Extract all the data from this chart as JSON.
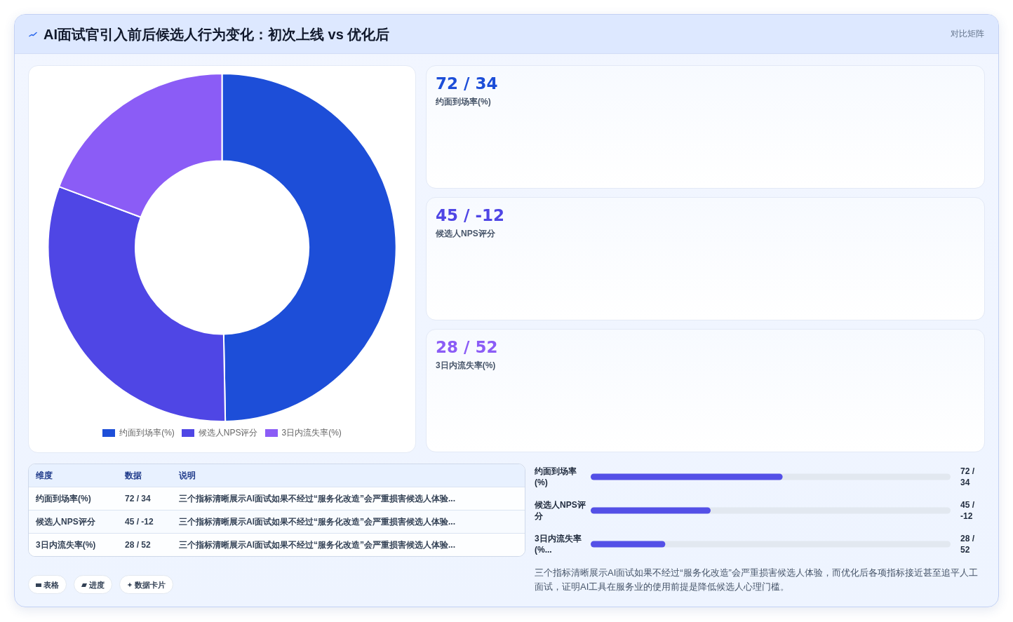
{
  "chart_data": [
    {
      "type": "donut",
      "title": "AI面试官引入前后候选人行为变化：初次上线 vs 优化后",
      "categories": [
        "约面到场率(%)",
        "候选人NPS评分",
        "3日内流失率(%)"
      ],
      "values": [
        49.7,
        31,
        19.3
      ],
      "colors": [
        "#1d4ed8",
        "#4f46e5",
        "#8b5cf6"
      ],
      "legend": "bottom"
    },
    {
      "type": "other",
      "title": "对比矩阵",
      "annotations": [
        "72 / 34",
        "约面到场率(%)",
        "45 / -12",
        "候选人NPS评分",
        "28 / 52",
        "3日内流失率(%)"
      ],
      "colors": [
        "#1d4ed8",
        "#4f46e5",
        "#8b5cf6"
      ]
    },
    {
      "type": "other",
      "annotations": [
        "维度",
        "数据",
        "说明",
        "约面到场率(%)",
        "72 / 34",
        "三个指标清晰展示AI面试如果不经过“服务化改造”会严重损害候选人体验...",
        "候选人NPS评分",
        "45 / -12",
        "三个指标清晰展示AI面试如果不经过“服务化改造”会严重损害候选人体验...",
        "3日内流失率(%)",
        "28 / 52",
        "三个指标清晰展示AI面试如果不经过“服务化改造”会严重损害候选人体验..."
      ]
    },
    {
      "type": "bar",
      "orientation": "horizontal",
      "categories": [
        "约面到场率(%)",
        "候选人NPS评分",
        "3日内流失率(%..."
      ],
      "values": [
        72,
        45,
        28
      ],
      "xlim": [
        0,
        135
      ],
      "color": "#5450e7",
      "value_labels": [
        "72 / 34",
        "45 / -12",
        "28 / 52"
      ],
      "annotations": [
        "三个指标清晰展示AI面试如果不经过“服务化改造”会严重损害候选人体验，而优化后各项指标接近甚至追平人工面试，证明AI工具在服务业的使用前提是降低候选人心理门槛。"
      ]
    },
    {
      "type": "other",
      "annotations": [
        "表格",
        "进度",
        "数据卡片"
      ]
    }
  ]
}
